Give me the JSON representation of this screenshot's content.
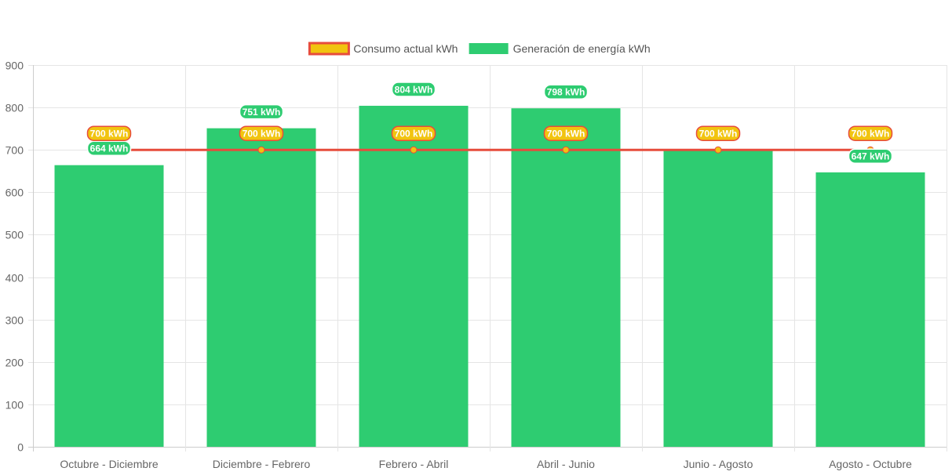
{
  "chart_data": {
    "type": "bar",
    "categories": [
      "Octubre - Diciembre",
      "Diciembre - Febrero",
      "Febrero - Abril",
      "Abril - Junio",
      "Junio - Agosto",
      "Agosto - Octubre"
    ],
    "series": [
      {
        "name": "Consumo actual kWh",
        "type": "line",
        "values": [
          700,
          700,
          700,
          700,
          700,
          700
        ],
        "labels": [
          "700 kWh",
          "700 kWh",
          "700 kWh",
          "700 kWh",
          "700 kWh",
          "700 kWh"
        ],
        "color": "#e74c3c",
        "fill_color": "#f1c40f"
      },
      {
        "name": "Generación de energía kWh",
        "type": "bar",
        "values": [
          664,
          751,
          804,
          798,
          700,
          647
        ],
        "labels": [
          "664 kWh",
          "751 kWh",
          "804 kWh",
          "798 kWh",
          "700 kWh",
          "647 kWh"
        ],
        "color": "#2ecc71"
      }
    ],
    "yticks": [
      "0",
      "100",
      "200",
      "300",
      "400",
      "500",
      "600",
      "700",
      "800",
      "900"
    ],
    "ylim": [
      0,
      900
    ],
    "title": "",
    "xlabel": "",
    "ylabel": "",
    "grid": true,
    "legend_position": "top-center"
  }
}
